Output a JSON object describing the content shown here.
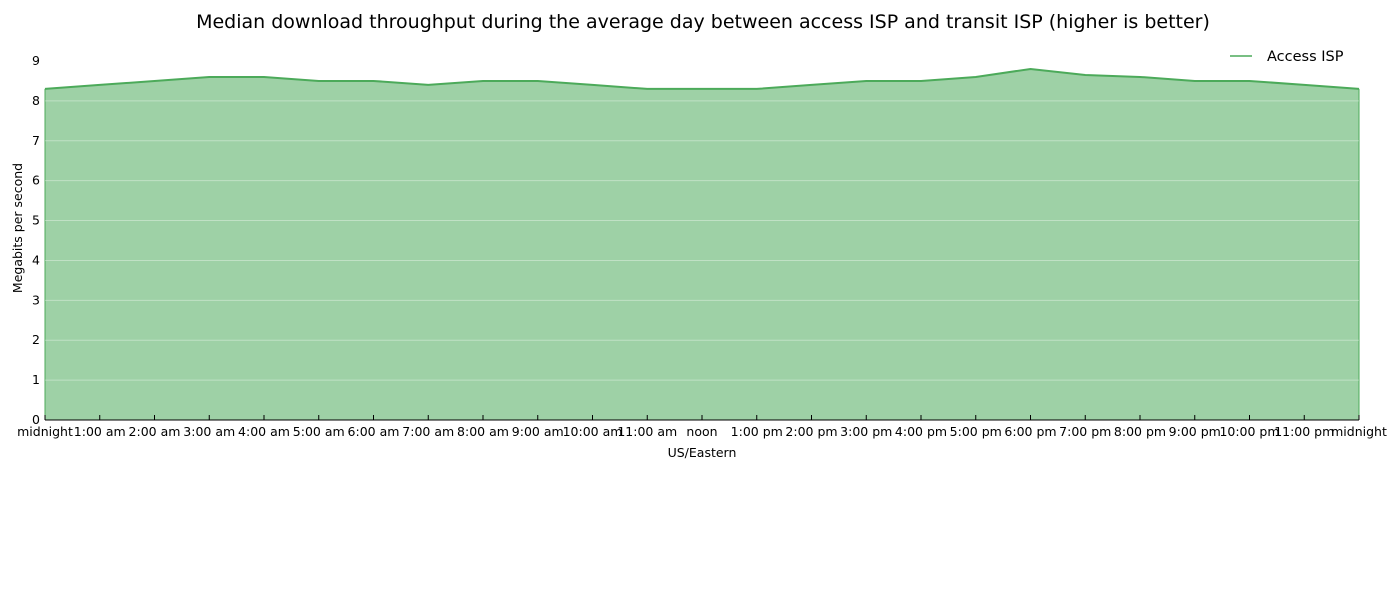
{
  "chart_data": {
    "type": "area",
    "title": "Median download throughput during the average day between access ISP and transit ISP (higher is better)",
    "xlabel": "US/Eastern",
    "ylabel": "Megabits per second",
    "ylim": [
      0,
      9
    ],
    "yticks": [
      "0",
      "1",
      "2",
      "3",
      "4",
      "5",
      "6",
      "7",
      "8",
      "9"
    ],
    "x_tick_labels": [
      "midnight",
      "1:00 am",
      "2:00 am",
      "3:00 am",
      "4:00 am",
      "5:00 am",
      "6:00 am",
      "7:00 am",
      "8:00 am",
      "9:00 am",
      "10:00 am",
      "11:00 am",
      "noon",
      "1:00 pm",
      "2:00 pm",
      "3:00 pm",
      "4:00 pm",
      "5:00 pm",
      "6:00 pm",
      "7:00 pm",
      "8:00 pm",
      "9:00 pm",
      "10:00 pm",
      "11:00 pm",
      "midnight"
    ],
    "grid": true,
    "legend_position": "top-right",
    "series": [
      {
        "name": "Access ISP",
        "color": "#4caa5a",
        "fill_color": "#9ed1a6",
        "values": [
          8.3,
          8.4,
          8.5,
          8.6,
          8.6,
          8.5,
          8.5,
          8.4,
          8.5,
          8.5,
          8.4,
          8.3,
          8.3,
          8.3,
          8.4,
          8.5,
          8.5,
          8.6,
          8.8,
          8.65,
          8.6,
          8.5,
          8.5,
          8.4,
          8.3
        ]
      }
    ]
  }
}
